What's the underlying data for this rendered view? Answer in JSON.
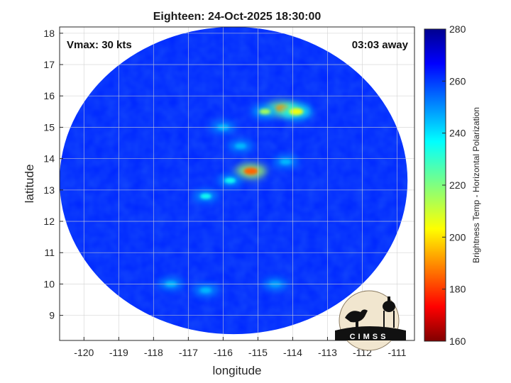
{
  "chart_data": {
    "type": "heatmap",
    "title": "Eighteen: 24-Oct-2025 18:30:00",
    "xlabel": "longitude",
    "ylabel": "latitude",
    "xlim": [
      -120.7,
      -110.5
    ],
    "ylim": [
      8.2,
      18.2
    ],
    "xticks": [
      -120,
      -119,
      -118,
      -117,
      -116,
      -115,
      -114,
      -113,
      -112,
      -111
    ],
    "yticks": [
      9,
      10,
      11,
      12,
      13,
      14,
      15,
      16,
      17,
      18
    ],
    "grid": true,
    "annotations": {
      "vmax": "Vmax: 30 kts",
      "away": "03:03 away"
    },
    "colorbar": {
      "label": "Brightness Temp - Horizontal Polarization",
      "range": [
        160,
        280
      ],
      "ticks": [
        160,
        180,
        200,
        220,
        240,
        260,
        280
      ],
      "colormap": "jet"
    },
    "swath": {
      "center_lon": -115.7,
      "center_lat": 13.3,
      "radius_lon": 5.0,
      "radius_lat": 4.9
    },
    "features": [
      {
        "lon": -115.2,
        "lat": 13.6,
        "value": 185
      },
      {
        "lon": -114.3,
        "lat": 15.6,
        "value": 190
      },
      {
        "lon": -114.8,
        "lat": 15.5,
        "value": 215
      },
      {
        "lon": -113.9,
        "lat": 15.5,
        "value": 205
      },
      {
        "lon": -115.8,
        "lat": 13.3,
        "value": 235
      },
      {
        "lon": -116.5,
        "lat": 12.8,
        "value": 235
      },
      {
        "lon": -115.5,
        "lat": 14.4,
        "value": 245
      },
      {
        "lon": -116.0,
        "lat": 15.0,
        "value": 245
      },
      {
        "lon": -114.2,
        "lat": 13.9,
        "value": 245
      },
      {
        "lon": -117.5,
        "lat": 10.0,
        "value": 245
      },
      {
        "lon": -116.5,
        "lat": 9.8,
        "value": 245
      },
      {
        "lon": -114.5,
        "lat": 10.0,
        "value": 248
      }
    ],
    "background_value": 262
  },
  "logo": {
    "text": "CIMSS"
  }
}
